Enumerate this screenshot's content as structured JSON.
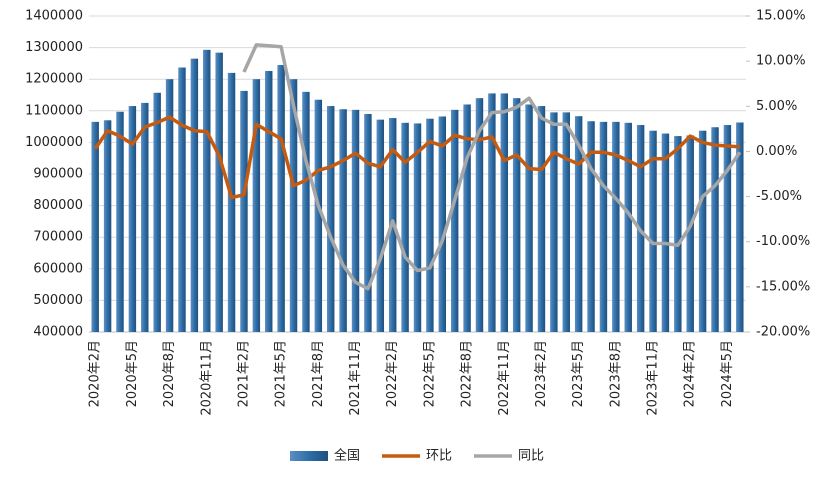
{
  "chart_data": {
    "type": "bar_line",
    "categories": [
      "2020年2月",
      null,
      null,
      "2020年5月",
      null,
      null,
      "2020年8月",
      null,
      null,
      "2020年11月",
      null,
      null,
      "2021年2月",
      null,
      null,
      "2021年5月",
      null,
      null,
      "2021年8月",
      null,
      null,
      "2021年11月",
      null,
      null,
      "2022年2月",
      null,
      null,
      "2022年5月",
      null,
      null,
      "2022年8月",
      null,
      null,
      "2022年11月",
      null,
      null,
      "2023年2月",
      null,
      null,
      "2023年5月",
      null,
      null,
      "2023年8月",
      null,
      null,
      "2023年11月",
      null,
      null,
      "2024年2月",
      null,
      null,
      "2024年5月",
      null
    ],
    "series": [
      {
        "name": "全国",
        "kind": "bar",
        "color": "#2e6ea6",
        "values": [
          1065000,
          1070000,
          1097000,
          1115000,
          1125000,
          1157000,
          1200000,
          1237000,
          1265000,
          1293000,
          1284000,
          1220000,
          1163000,
          1200000,
          1226000,
          1245000,
          1200000,
          1160000,
          1135000,
          1115000,
          1105000,
          1103000,
          1090000,
          1072000,
          1077000,
          1062000,
          1060000,
          1075000,
          1082000,
          1103000,
          1120000,
          1140000,
          1155000,
          1155000,
          1140000,
          1120000,
          1115000,
          1095000,
          1095000,
          1083000,
          1067000,
          1065000,
          1065000,
          1062000,
          1055000,
          1037000,
          1028000,
          1020000,
          1022000,
          1037000,
          1048000,
          1055000,
          1063000
        ]
      },
      {
        "name": "环比",
        "kind": "line",
        "axis": "y2",
        "color": "#c55a11",
        "values": [
          0.3,
          2.3,
          1.7,
          0.8,
          2.7,
          3.2,
          3.8,
          2.9,
          2.3,
          2.2,
          -0.5,
          -5.1,
          -4.8,
          3.0,
          2.2,
          1.4,
          -3.8,
          -3.2,
          -2.1,
          -1.7,
          -1.0,
          -0.2,
          -1.3,
          -1.7,
          0.2,
          -1.2,
          -0.1,
          1.1,
          0.6,
          1.8,
          1.4,
          1.3,
          1.6,
          -1.0,
          -0.4,
          -1.9,
          -2.0,
          -0.1,
          -0.8,
          -1.4,
          -0.1,
          -0.1,
          -0.4,
          -1.0,
          -1.7,
          -0.8,
          -0.8,
          0.3,
          1.7,
          1.0,
          0.7,
          0.6,
          0.5
        ]
      },
      {
        "name": "同比",
        "kind": "line",
        "axis": "y2",
        "color": "#a6a6a6",
        "values": [
          null,
          null,
          null,
          null,
          null,
          null,
          null,
          null,
          null,
          null,
          null,
          null,
          8.8,
          11.8,
          11.7,
          11.6,
          5.1,
          -1.0,
          -6.0,
          -9.5,
          -12.6,
          -14.5,
          -15.2,
          -11.9,
          -7.7,
          -11.7,
          -13.2,
          -12.9,
          -9.9,
          -5.4,
          -0.7,
          2.3,
          4.3,
          4.4,
          4.9,
          5.9,
          3.7,
          3.0,
          3.0,
          0.7,
          -1.9,
          -3.8,
          -5.2,
          -6.8,
          -8.8,
          -10.2,
          -10.2,
          -10.4,
          -8.3,
          -5.0,
          -3.8,
          -2.1,
          -0.1
        ]
      }
    ],
    "ylim": [
      400000,
      1400000
    ],
    "yticks": [
      400000,
      500000,
      600000,
      700000,
      800000,
      900000,
      1000000,
      1100000,
      1200000,
      1300000,
      1400000
    ],
    "y2lim": [
      -20,
      15
    ],
    "y2ticks": [
      {
        "value": -20,
        "label": "-20.00%"
      },
      {
        "value": -15,
        "label": "-15.00%"
      },
      {
        "value": -10,
        "label": "-10.00%"
      },
      {
        "value": -5,
        "label": "-5.00%"
      },
      {
        "value": 0,
        "label": "0.00%"
      },
      {
        "value": 5,
        "label": "5.00%"
      },
      {
        "value": 10,
        "label": "10.00%"
      },
      {
        "value": 15,
        "label": "15.00%"
      }
    ],
    "grid": true,
    "legend": "bottom"
  }
}
